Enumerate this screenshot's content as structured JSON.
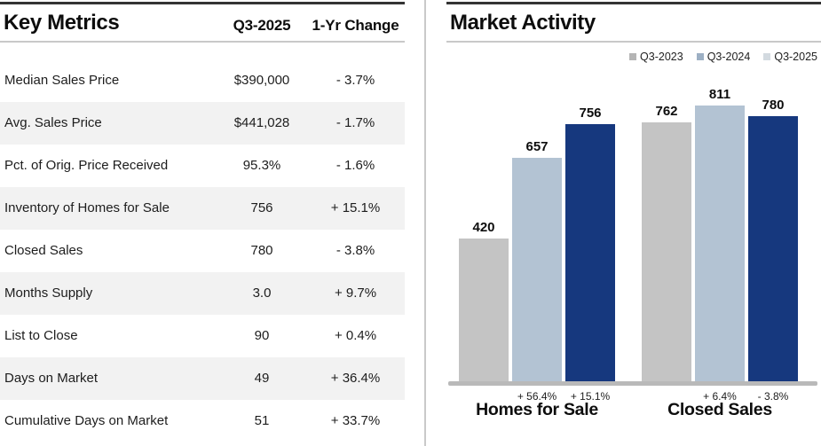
{
  "left_panel": {
    "title": "Key Metrics",
    "col_value_header": "Q3-2025",
    "col_change_header": "1-Yr Change",
    "rows": [
      {
        "label": "Median Sales Price",
        "value": "$390,000",
        "change": "- 3.7%"
      },
      {
        "label": "Avg. Sales Price",
        "value": "$441,028",
        "change": "- 1.7%"
      },
      {
        "label": "Pct. of Orig. Price Received",
        "value": "95.3%",
        "change": "- 1.6%"
      },
      {
        "label": "Inventory of Homes for Sale",
        "value": "756",
        "change": "+ 15.1%"
      },
      {
        "label": "Closed Sales",
        "value": "780",
        "change": "- 3.8%"
      },
      {
        "label": "Months Supply",
        "value": "3.0",
        "change": "+ 9.7%"
      },
      {
        "label": "List to Close",
        "value": "90",
        "change": "+ 0.4%"
      },
      {
        "label": "Days on Market",
        "value": "49",
        "change": "+ 36.4%"
      },
      {
        "label": "Cumulative Days on Market",
        "value": "51",
        "change": "+ 33.7%"
      }
    ]
  },
  "right_panel": {
    "title": "Market Activity",
    "legend": [
      {
        "label": "Q3-2023",
        "swatch_color": "#b5b5b5"
      },
      {
        "label": "Q3-2024",
        "swatch_color": "#9db0c4"
      },
      {
        "label": "Q3-2025",
        "swatch_color": "#d3dae0"
      }
    ]
  },
  "chart_data": {
    "type": "bar",
    "title": "Market Activity",
    "categories": [
      "Homes for Sale",
      "Closed Sales"
    ],
    "series": [
      {
        "name": "Q3-2023",
        "values": [
          420,
          762
        ],
        "color": "#c4c4c4"
      },
      {
        "name": "Q3-2024",
        "values": [
          657,
          811
        ],
        "color": "#b3c3d3"
      },
      {
        "name": "Q3-2025",
        "values": [
          756,
          780
        ],
        "color": "#16387e"
      }
    ],
    "bar_value_labels": [
      [
        "420",
        "657",
        "756"
      ],
      [
        "762",
        "811",
        "780"
      ]
    ],
    "pct_change_labels": [
      [
        "",
        "+ 56.4%",
        "+ 15.1%"
      ],
      [
        "",
        "+ 6.4%",
        "- 3.8%"
      ]
    ],
    "legend_position": "top-right",
    "ylim": [
      0,
      860
    ],
    "grid": false,
    "xlabel": "",
    "ylabel": ""
  }
}
